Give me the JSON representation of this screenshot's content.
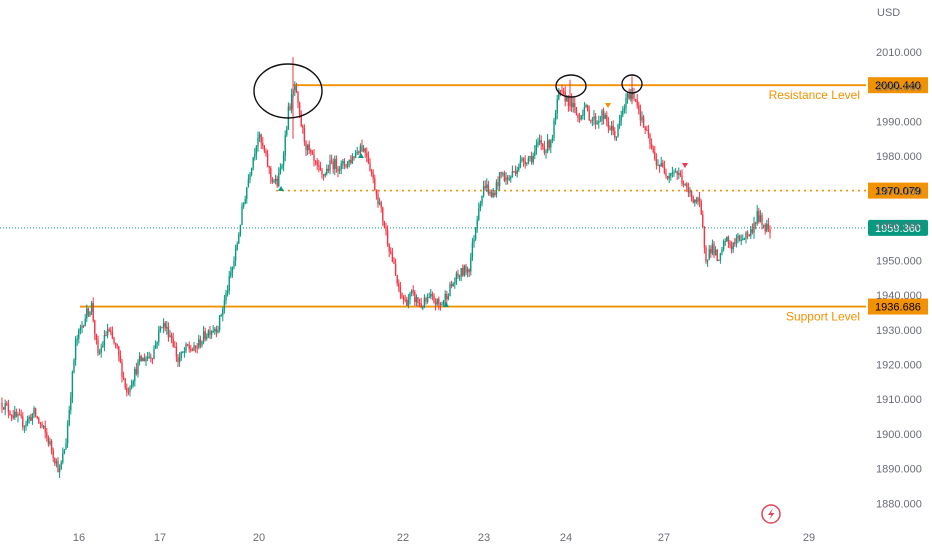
{
  "chart_data": {
    "type": "candlestick",
    "currency": "USD",
    "y_ticks": [
      "2010.000",
      "2000.000",
      "1990.000",
      "1980.000",
      "1970.000",
      "1960.000",
      "1950.000",
      "1940.000",
      "1930.000",
      "1920.000",
      "1910.000",
      "1900.000",
      "1890.000",
      "1880.000"
    ],
    "y_tick_values": [
      2010,
      2000,
      1990,
      1980,
      1970,
      1960,
      1950,
      1940,
      1930,
      1920,
      1910,
      1900,
      1890,
      1880
    ],
    "x_ticks": [
      "16",
      "17",
      "20",
      "22",
      "23",
      "24",
      "27",
      "29"
    ],
    "ylim": [
      1875,
      2015
    ],
    "levels": [
      {
        "name": "Resistance Level",
        "price": 2000.44,
        "tag": "2000.440",
        "style": "solid"
      },
      {
        "name": "",
        "price": 1970.079,
        "tag": "1970.079",
        "style": "dotted"
      },
      {
        "name": "Support Level",
        "price": 1936.686,
        "tag": "1936.686",
        "style": "solid"
      }
    ],
    "last_price": {
      "price": 1959.36,
      "tag": "1959.360"
    },
    "anchors": [
      [
        0,
        1909
      ],
      [
        8,
        1905
      ],
      [
        14,
        1903
      ],
      [
        20,
        1906
      ],
      [
        26,
        1901
      ],
      [
        30,
        1897
      ],
      [
        36,
        1889
      ],
      [
        40,
        1898
      ],
      [
        46,
        1926
      ],
      [
        52,
        1934
      ],
      [
        56,
        1937
      ],
      [
        60,
        1922
      ],
      [
        66,
        1930
      ],
      [
        72,
        1924
      ],
      [
        78,
        1912
      ],
      [
        86,
        1921
      ],
      [
        94,
        1923
      ],
      [
        100,
        1932
      ],
      [
        106,
        1928
      ],
      [
        110,
        1921
      ],
      [
        116,
        1925
      ],
      [
        120,
        1924
      ],
      [
        126,
        1928
      ],
      [
        130,
        1930
      ],
      [
        135,
        1931
      ],
      [
        140,
        1940
      ],
      [
        146,
        1952
      ],
      [
        150,
        1964
      ],
      [
        155,
        1976
      ],
      [
        160,
        1986
      ],
      [
        164,
        1981
      ],
      [
        168,
        1974
      ],
      [
        172,
        1972
      ],
      [
        175,
        1978
      ],
      [
        179,
        1993
      ],
      [
        183,
        2000
      ],
      [
        186,
        1991
      ],
      [
        190,
        1983
      ],
      [
        195,
        1978
      ],
      [
        200,
        1974
      ],
      [
        206,
        1978
      ],
      [
        212,
        1977
      ],
      [
        218,
        1979
      ],
      [
        224,
        1983
      ],
      [
        228,
        1981
      ],
      [
        232,
        1973
      ],
      [
        236,
        1966
      ],
      [
        240,
        1958
      ],
      [
        244,
        1950
      ],
      [
        248,
        1941
      ],
      [
        252,
        1938
      ],
      [
        256,
        1940
      ],
      [
        262,
        1937
      ],
      [
        268,
        1939
      ],
      [
        274,
        1937
      ],
      [
        280,
        1942
      ],
      [
        286,
        1946
      ],
      [
        292,
        1948
      ],
      [
        298,
        1966
      ],
      [
        302,
        1972
      ],
      [
        306,
        1968
      ],
      [
        312,
        1975
      ],
      [
        316,
        1973
      ],
      [
        322,
        1977
      ],
      [
        326,
        1979
      ],
      [
        332,
        1980
      ],
      [
        336,
        1984
      ],
      [
        340,
        1982
      ],
      [
        344,
        1986
      ],
      [
        348,
        1998
      ],
      [
        352,
        1997
      ],
      [
        356,
        1995
      ],
      [
        360,
        1991
      ],
      [
        364,
        1994
      ],
      [
        368,
        1991
      ],
      [
        372,
        1990
      ],
      [
        375,
        1992
      ],
      [
        380,
        1988
      ],
      [
        384,
        1986
      ],
      [
        388,
        1993
      ],
      [
        392,
        1998
      ],
      [
        396,
        1997
      ],
      [
        400,
        1990
      ],
      [
        404,
        1985
      ],
      [
        408,
        1979
      ],
      [
        412,
        1977
      ],
      [
        416,
        1975
      ],
      [
        420,
        1976
      ],
      [
        424,
        1974
      ],
      [
        428,
        1970
      ],
      [
        432,
        1968
      ],
      [
        436,
        1966
      ],
      [
        440,
        1951
      ],
      [
        444,
        1954
      ],
      [
        448,
        1949
      ],
      [
        452,
        1956
      ],
      [
        456,
        1954
      ],
      [
        460,
        1956
      ],
      [
        464,
        1957
      ],
      [
        468,
        1958
      ],
      [
        472,
        1963
      ],
      [
        476,
        1960
      ],
      [
        480,
        1959.4
      ]
    ]
  }
}
